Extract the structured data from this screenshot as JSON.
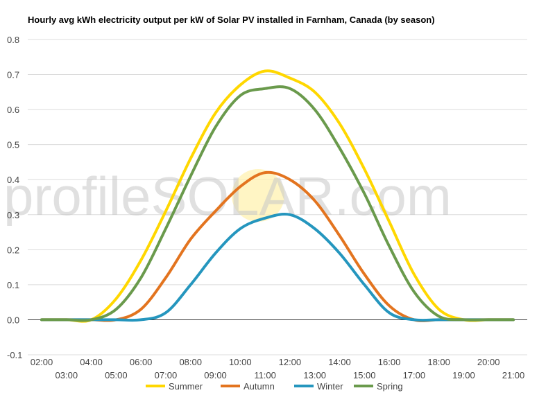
{
  "chart_data": {
    "type": "line",
    "title": "Hourly avg kWh electricity output per kW of Solar PV installed in Farnham, Canada (by season)",
    "xlabel": "",
    "ylabel": "",
    "ylim": [
      -0.1,
      0.8
    ],
    "yticks": [
      "-0.1",
      "0.0",
      "0.1",
      "0.2",
      "0.3",
      "0.4",
      "0.5",
      "0.6",
      "0.7",
      "0.8"
    ],
    "categories": [
      "02:00",
      "03:00",
      "04:00",
      "05:00",
      "06:00",
      "07:00",
      "08:00",
      "09:00",
      "10:00",
      "11:00",
      "12:00",
      "13:00",
      "14:00",
      "15:00",
      "16:00",
      "17:00",
      "18:00",
      "19:00",
      "20:00",
      "21:00"
    ],
    "grid": true,
    "legend_position": "bottom",
    "series": [
      {
        "name": "Summer",
        "color": "#ffd700",
        "values": [
          0.0,
          0.0,
          0.0,
          0.06,
          0.17,
          0.31,
          0.46,
          0.59,
          0.67,
          0.71,
          0.69,
          0.65,
          0.56,
          0.43,
          0.28,
          0.13,
          0.03,
          0.0,
          0.0,
          0.0
        ]
      },
      {
        "name": "Autumn",
        "color": "#e3741f",
        "values": [
          0.0,
          0.0,
          0.0,
          0.0,
          0.03,
          0.12,
          0.23,
          0.31,
          0.38,
          0.42,
          0.4,
          0.34,
          0.24,
          0.13,
          0.04,
          0.0,
          0.0,
          0.0,
          0.0,
          0.0
        ]
      },
      {
        "name": "Winter",
        "color": "#2596be",
        "values": [
          0.0,
          0.0,
          0.0,
          0.0,
          0.0,
          0.02,
          0.1,
          0.19,
          0.26,
          0.29,
          0.3,
          0.26,
          0.19,
          0.1,
          0.02,
          0.0,
          0.0,
          0.0,
          0.0,
          0.0
        ]
      },
      {
        "name": "Spring",
        "color": "#6a9a4c",
        "values": [
          0.0,
          0.0,
          0.0,
          0.03,
          0.12,
          0.26,
          0.41,
          0.55,
          0.64,
          0.66,
          0.66,
          0.6,
          0.49,
          0.36,
          0.21,
          0.08,
          0.01,
          0.0,
          0.0,
          0.0
        ]
      }
    ]
  },
  "watermark": "profileSOLAR.com"
}
